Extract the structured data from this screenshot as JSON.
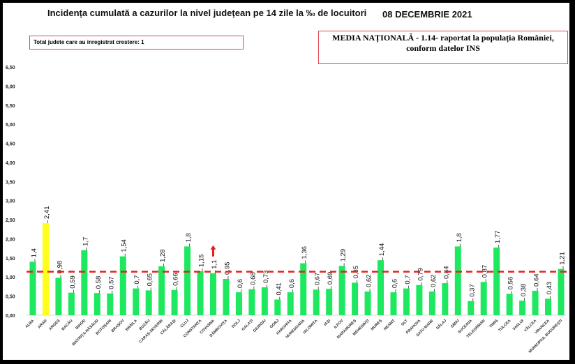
{
  "chart_data": {
    "type": "bar",
    "title": "Incidența cumulată a cazurilor la nivel județean pe 14 zile la ‰ de locuitori",
    "date": "08 DECEMBRIE 2021",
    "note": "Total judete care au inregistrat crestere: 1",
    "reference_text_line1": "MEDIA NAȚIONALĂ - 1.14-  raportat la populația României,",
    "reference_text_line2": "conform datelor INS",
    "reference_line": {
      "value": 1.14,
      "color": "#e8201c",
      "style": "dashed"
    },
    "ylim": [
      0,
      6.5
    ],
    "yticks": [
      "0,00",
      "0,50",
      "1,00",
      "1,50",
      "2,00",
      "2,50",
      "3,00",
      "3,50",
      "4,00",
      "4,50",
      "5,00",
      "5,50",
      "6,00",
      "6,50"
    ],
    "grid": false,
    "bar_color": "#1ee860",
    "highlight_color": "#ffff1a",
    "highlight_category": "ARAD",
    "increase_marker": {
      "category": "COVASNA",
      "icon": "arrow-up",
      "color": "#e8201c"
    },
    "categories": [
      "ALBA",
      "ARAD",
      "ARGEȘ",
      "BACĂU",
      "BIHOR",
      "BISTRIȚA-NĂSĂUD",
      "BOTOȘANI",
      "BRAȘOV",
      "BRĂILA",
      "BUZĂU",
      "CARAȘ-SEVERIN",
      "CĂLĂRAȘI",
      "CLUJ",
      "CONSTANȚA",
      "COVASNA",
      "DÂMBOVIȚA",
      "DOLJ",
      "GALAȚI",
      "GIURGIU",
      "GORJ",
      "HARGHITA",
      "HUNEDOARA",
      "IALOMIȚA",
      "IAȘI",
      "ILFOV",
      "MARAMUREȘ",
      "MEHEDINȚI",
      "MUREȘ",
      "NEAMȚ",
      "OLT",
      "PRAHOVA",
      "SATU MARE",
      "SĂLAJ",
      "SIBIU",
      "SUCEAVA",
      "TELEORMAN",
      "TIMIȘ",
      "TULCEA",
      "VASLUI",
      "VÂLCEA",
      "VRANCEA",
      "MUNICIPIUL BUCUREȘTI"
    ],
    "values": [
      1.4,
      2.41,
      0.98,
      0.59,
      1.7,
      0.58,
      0.57,
      1.54,
      0.7,
      0.65,
      1.28,
      0.66,
      1.8,
      1.15,
      1.1,
      0.95,
      0.6,
      0.68,
      0.73,
      0.41,
      0.6,
      1.36,
      0.67,
      0.69,
      1.29,
      0.85,
      0.62,
      1.44,
      0.6,
      0.7,
      0.79,
      0.62,
      0.84,
      1.8,
      0.37,
      0.87,
      1.77,
      0.56,
      0.38,
      0.64,
      0.43,
      1.21
    ],
    "labels": [
      "1,4",
      "2,41",
      "0,98",
      "0,59",
      "1,7",
      "0,58",
      "0,57",
      "1,54",
      "0,7",
      "0,65",
      "1,28",
      "0,66",
      "1,8",
      "1,15",
      "1,1",
      "0,95",
      "0,6",
      "0,68",
      "0,73",
      "0,41",
      "0,6",
      "1,36",
      "0,67",
      "0,69",
      "1,29",
      "0,85",
      "0,62",
      "1,44",
      "0,6",
      "0,7",
      "0,79",
      "0,62",
      "0,84",
      "1,8",
      "0,37",
      "0,87",
      "1,77",
      "0,56",
      "0,38",
      "0,64",
      "0,43",
      "1,21"
    ]
  }
}
